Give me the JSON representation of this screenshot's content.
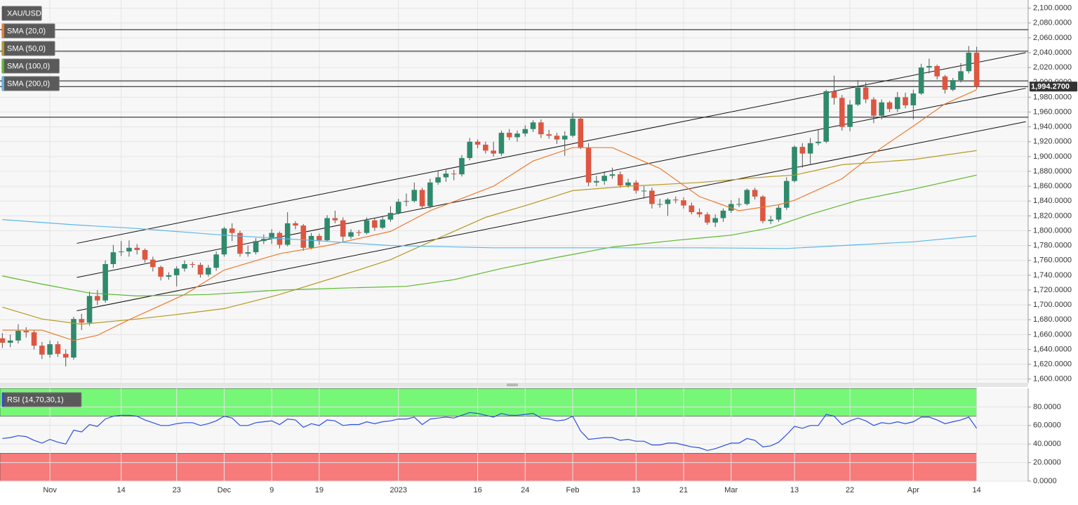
{
  "chart_data": [
    {
      "type": "candlestick",
      "xlim": [
        -0.3,
        129.5
      ],
      "ylim": [
        1595,
        2111
      ],
      "yticks": [
        {
          "value": 1600,
          "label": "1,600.0000"
        },
        {
          "value": 1620,
          "label": "1,620.0000"
        },
        {
          "value": 1640,
          "label": "1,640.0000"
        },
        {
          "value": 1660,
          "label": "1,660.0000"
        },
        {
          "value": 1680,
          "label": "1,680.0000"
        },
        {
          "value": 1700,
          "label": "1,700.0000"
        },
        {
          "value": 1720,
          "label": "1,720.0000"
        },
        {
          "value": 1740,
          "label": "1,740.0000"
        },
        {
          "value": 1760,
          "label": "1,760.0000"
        },
        {
          "value": 1780,
          "label": "1,780.0000"
        },
        {
          "value": 1800,
          "label": "1,800.0000"
        },
        {
          "value": 1820,
          "label": "1,820.0000"
        },
        {
          "value": 1840,
          "label": "1,840.0000"
        },
        {
          "value": 1860,
          "label": "1,860.0000"
        },
        {
          "value": 1880,
          "label": "1,880.0000"
        },
        {
          "value": 1900,
          "label": "1,900.0000"
        },
        {
          "value": 1920,
          "label": "1,920.0000"
        },
        {
          "value": 1940,
          "label": "1,940.0000"
        },
        {
          "value": 1960,
          "label": "1,960.0000"
        },
        {
          "value": 1980,
          "label": "1,980.0000"
        },
        {
          "value": 2000,
          "label": "2,000.0000"
        },
        {
          "value": 2020,
          "label": "2,020.0000"
        },
        {
          "value": 2040,
          "label": "2,040.0000"
        },
        {
          "value": 2060,
          "label": "2,060.0000"
        },
        {
          "value": 2080,
          "label": "2,080.0000"
        },
        {
          "value": 2100,
          "label": "2,100.0000"
        }
      ],
      "xticks": [
        6,
        15,
        22,
        28,
        34,
        40,
        50,
        60,
        66,
        72,
        80,
        86,
        92,
        100,
        107,
        115,
        123
      ],
      "grid": true,
      "last_price": {
        "value": 1994.27,
        "label": "1,994.2700"
      },
      "hlines": [
        2071,
        2042,
        2002,
        1953
      ],
      "trendlines": [
        {
          "x": [
            9.4,
            129.2
          ],
          "values": [
            1783,
            2040
          ]
        },
        {
          "x": [
            9.4,
            129.2
          ],
          "values": [
            1737,
            1992
          ]
        },
        {
          "x": [
            9.4,
            129.2
          ],
          "values": [
            1692,
            1947
          ]
        }
      ],
      "series": [
        {
          "name": "XAU/USD",
          "color": "#555555",
          "up_color": "#2f8a6c",
          "down_color": "#de5641",
          "open": [
            1655,
            1649,
            1652,
            1665,
            1663,
            1645,
            1633,
            1647,
            1634,
            1629,
            1681,
            1676,
            1712,
            1706,
            1755,
            1771,
            1772,
            1777,
            1774,
            1761,
            1751,
            1738,
            1740,
            1749,
            1755,
            1754,
            1741,
            1750,
            1768,
            1803,
            1797,
            1769,
            1771,
            1786,
            1789,
            1797,
            1781,
            1810,
            1807,
            1777,
            1793,
            1787,
            1817,
            1814,
            1792,
            1798,
            1797,
            1814,
            1804,
            1815,
            1824,
            1839,
            1840,
            1855,
            1833,
            1865,
            1872,
            1877,
            1876,
            1898,
            1920,
            1916,
            1908,
            1904,
            1932,
            1926,
            1931,
            1937,
            1946,
            1930,
            1928,
            1923,
            1928,
            1951,
            1912,
            1865,
            1867,
            1874,
            1876,
            1861,
            1865,
            1854,
            1854,
            1836,
            1836,
            1842,
            1841,
            1834,
            1825,
            1822,
            1811,
            1817,
            1827,
            1836,
            1836,
            1855,
            1846,
            1813,
            1815,
            1831,
            1867,
            1913,
            1904,
            1918,
            1920,
            1988,
            1979,
            1940,
            1970,
            1993,
            1977,
            1955,
            1973,
            1964,
            1980,
            1969,
            1985,
            2020,
            2022,
            2008,
            1990,
            2003,
            2015,
            2040
          ],
          "high": [
            1662,
            1660,
            1674,
            1670,
            1666,
            1650,
            1652,
            1651,
            1640,
            1684,
            1688,
            1718,
            1720,
            1760,
            1781,
            1786,
            1787,
            1782,
            1776,
            1765,
            1753,
            1744,
            1752,
            1760,
            1758,
            1757,
            1754,
            1772,
            1805,
            1810,
            1800,
            1780,
            1790,
            1795,
            1802,
            1799,
            1825,
            1813,
            1809,
            1797,
            1796,
            1821,
            1827,
            1818,
            1802,
            1801,
            1818,
            1817,
            1820,
            1833,
            1843,
            1850,
            1865,
            1858,
            1870,
            1881,
            1882,
            1882,
            1902,
            1925,
            1923,
            1920,
            1920,
            1935,
            1937,
            1935,
            1942,
            1949,
            1950,
            1936,
            1932,
            1934,
            1959,
            1952,
            1918,
            1874,
            1880,
            1885,
            1880,
            1870,
            1868,
            1860,
            1858,
            1843,
            1844,
            1846,
            1845,
            1838,
            1830,
            1825,
            1822,
            1830,
            1841,
            1844,
            1857,
            1858,
            1848,
            1820,
            1835,
            1872,
            1915,
            1918,
            1925,
            1937,
            1990,
            2009,
            1983,
            1976,
            2003,
            2000,
            1980,
            1977,
            1975,
            1987,
            1986,
            1990,
            2025,
            2032,
            2024,
            2010,
            2006,
            2026,
            2049,
            2048
          ],
          "low": [
            1642,
            1643,
            1648,
            1656,
            1640,
            1627,
            1629,
            1630,
            1617,
            1626,
            1666,
            1672,
            1700,
            1703,
            1750,
            1766,
            1765,
            1768,
            1757,
            1745,
            1733,
            1734,
            1725,
            1745,
            1750,
            1737,
            1738,
            1746,
            1765,
            1786,
            1765,
            1765,
            1768,
            1782,
            1782,
            1776,
            1779,
            1802,
            1773,
            1775,
            1781,
            1785,
            1810,
            1785,
            1789,
            1793,
            1795,
            1800,
            1802,
            1812,
            1822,
            1833,
            1838,
            1830,
            1830,
            1862,
            1866,
            1868,
            1873,
            1895,
            1911,
            1904,
            1900,
            1901,
            1922,
            1920,
            1927,
            1933,
            1925,
            1924,
            1917,
            1901,
            1926,
            1910,
            1860,
            1860,
            1862,
            1870,
            1858,
            1858,
            1850,
            1843,
            1830,
            1831,
            1820,
            1837,
            1830,
            1822,
            1818,
            1808,
            1805,
            1812,
            1824,
            1832,
            1834,
            1842,
            1810,
            1809,
            1812,
            1828,
            1865,
            1885,
            1890,
            1915,
            1918,
            1970,
            1935,
            1934,
            1968,
            1972,
            1945,
            1950,
            1960,
            1960,
            1965,
            1950,
            1983,
            2012,
            2004,
            1985,
            1988,
            2000,
            2012,
            1991
          ],
          "close": [
            1649,
            1652,
            1665,
            1663,
            1645,
            1633,
            1647,
            1634,
            1629,
            1681,
            1676,
            1712,
            1706,
            1755,
            1771,
            1772,
            1777,
            1774,
            1761,
            1751,
            1738,
            1740,
            1749,
            1755,
            1754,
            1741,
            1750,
            1768,
            1803,
            1797,
            1769,
            1771,
            1786,
            1789,
            1797,
            1781,
            1810,
            1807,
            1777,
            1793,
            1787,
            1817,
            1814,
            1792,
            1798,
            1797,
            1814,
            1804,
            1815,
            1824,
            1839,
            1840,
            1855,
            1833,
            1865,
            1872,
            1877,
            1876,
            1898,
            1920,
            1916,
            1908,
            1904,
            1932,
            1926,
            1931,
            1937,
            1946,
            1930,
            1928,
            1923,
            1928,
            1951,
            1912,
            1865,
            1867,
            1874,
            1876,
            1861,
            1865,
            1854,
            1854,
            1836,
            1836,
            1842,
            1841,
            1834,
            1825,
            1822,
            1811,
            1817,
            1827,
            1836,
            1836,
            1855,
            1846,
            1813,
            1815,
            1831,
            1867,
            1913,
            1904,
            1918,
            1920,
            1988,
            1979,
            1940,
            1970,
            1993,
            1977,
            1955,
            1973,
            1964,
            1980,
            1969,
            1985,
            2020,
            2022,
            2008,
            1990,
            2003,
            2015,
            2040,
            1994.27
          ]
        },
        {
          "name": "SMA (20,0)",
          "color": "#f07a2e",
          "x": [
            0,
            5,
            9,
            12,
            16,
            23,
            28,
            35,
            41,
            49,
            54,
            62,
            67,
            72,
            77,
            83,
            88,
            93,
            98,
            100,
            106,
            111,
            115,
            119,
            123
          ],
          "values": [
            1666,
            1666,
            1652,
            1659,
            1680,
            1714,
            1747,
            1769,
            1780,
            1799,
            1827,
            1860,
            1894,
            1912,
            1912,
            1884,
            1846,
            1827,
            1835,
            1841,
            1870,
            1912,
            1941,
            1971,
            1990
          ]
        },
        {
          "name": "SMA (50,0)",
          "color": "#b49a22",
          "x": [
            0,
            5,
            10,
            17,
            22,
            28,
            35,
            42,
            49,
            54,
            61,
            67,
            72,
            79,
            88,
            97,
            100,
            106,
            115,
            123
          ],
          "values": [
            1697,
            1681,
            1674,
            1681,
            1687,
            1695,
            1714,
            1737,
            1761,
            1785,
            1818,
            1837,
            1854,
            1860,
            1865,
            1873,
            1875,
            1889,
            1896,
            1908
          ]
        },
        {
          "name": "SMA (100,0)",
          "color": "#5cb82c",
          "x": [
            0,
            5,
            11,
            17,
            26,
            35,
            44,
            51,
            57,
            63,
            70,
            77,
            85,
            92,
            97,
            102,
            108,
            115,
            123
          ],
          "values": [
            1739,
            1728,
            1716,
            1712,
            1714,
            1720,
            1723,
            1725,
            1734,
            1749,
            1764,
            1778,
            1787,
            1794,
            1804,
            1822,
            1841,
            1856,
            1875
          ]
        },
        {
          "name": "SMA (200,0)",
          "color": "#5ab8ea",
          "x": [
            0,
            9,
            17,
            28,
            39,
            49,
            62,
            75,
            88,
            99,
            106,
            115,
            123
          ],
          "values": [
            1815,
            1808,
            1803,
            1794,
            1787,
            1780,
            1777,
            1777,
            1777,
            1776,
            1780,
            1785,
            1793
          ]
        }
      ]
    },
    {
      "type": "line",
      "xlim": [
        -0.3,
        129.5
      ],
      "ylim": [
        0,
        100
      ],
      "yticks": [
        {
          "value": 0,
          "label": "0.0000"
        },
        {
          "value": 20,
          "label": "20.0000"
        },
        {
          "value": 40,
          "label": "40.0000"
        },
        {
          "value": 60,
          "label": "60.0000"
        },
        {
          "value": 80,
          "label": "80.0000"
        }
      ],
      "xticks": [
        {
          "value": 6,
          "label": "Nov"
        },
        {
          "value": 15,
          "label": "14"
        },
        {
          "value": 22,
          "label": "23"
        },
        {
          "value": 28,
          "label": "Dec"
        },
        {
          "value": 34,
          "label": "9"
        },
        {
          "value": 40,
          "label": "19"
        },
        {
          "value": 50,
          "label": "2023"
        },
        {
          "value": 60,
          "label": "16"
        },
        {
          "value": 66,
          "label": "24"
        },
        {
          "value": 72,
          "label": "Feb"
        },
        {
          "value": 80,
          "label": "13"
        },
        {
          "value": 86,
          "label": "21"
        },
        {
          "value": 92,
          "label": "Mar"
        },
        {
          "value": 100,
          "label": "13"
        },
        {
          "value": 107,
          "label": "22"
        },
        {
          "value": 115,
          "label": "Apr"
        },
        {
          "value": 123,
          "label": "14"
        }
      ],
      "grid": true,
      "bands": [
        {
          "range": [
            70,
            100
          ],
          "color": "#77f777"
        },
        {
          "range": [
            0,
            30
          ],
          "color": "#f77b7b"
        }
      ],
      "series": [
        {
          "name": "RSI (14,70,30,1)",
          "color": "#2a4fe0",
          "values": [
            46,
            47,
            49,
            48,
            44,
            41,
            45,
            42,
            40,
            55,
            53,
            61,
            59,
            67,
            70,
            71,
            71,
            70,
            66,
            63,
            60,
            60,
            62,
            63,
            63,
            60,
            62,
            65,
            70,
            68,
            60,
            60,
            63,
            64,
            65,
            61,
            67,
            66,
            58,
            62,
            60,
            66,
            65,
            60,
            61,
            61,
            64,
            62,
            64,
            65,
            67,
            67,
            69,
            61,
            67,
            68,
            69,
            68,
            71,
            74,
            73,
            71,
            69,
            73,
            71,
            71,
            72,
            73,
            68,
            67,
            65,
            66,
            70,
            54,
            45,
            46,
            47,
            47,
            44,
            45,
            43,
            43,
            39,
            39,
            41,
            41,
            39,
            37,
            36,
            33,
            35,
            38,
            41,
            41,
            46,
            44,
            37,
            38,
            42,
            50,
            59,
            57,
            60,
            60,
            72,
            70,
            61,
            65,
            68,
            65,
            60,
            63,
            62,
            64,
            62,
            64,
            69,
            69,
            66,
            62,
            64,
            66,
            69,
            57
          ]
        }
      ]
    }
  ]
}
